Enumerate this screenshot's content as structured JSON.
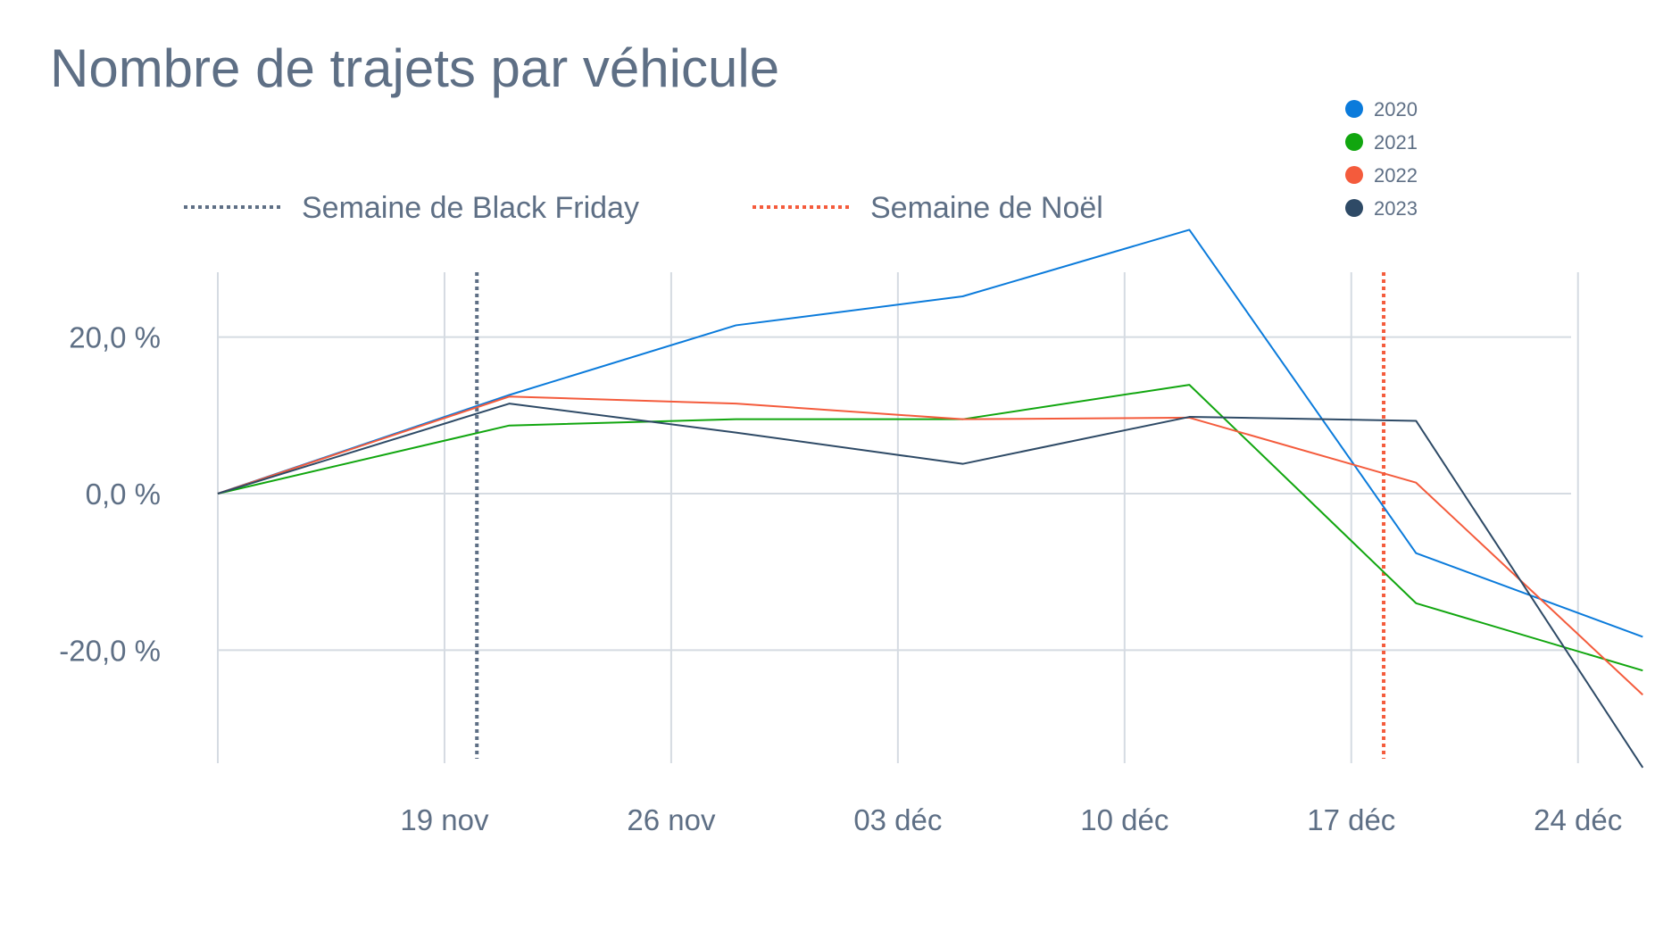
{
  "chart_data": {
    "type": "line",
    "title": "Nombre de trajets par véhicule",
    "xlabel": "",
    "ylabel": "",
    "x": [
      "2023-11-12",
      "2023-11-21",
      "2023-11-28",
      "2023-12-05",
      "2023-12-12",
      "2023-12-19",
      "2023-12-26"
    ],
    "x_ticks": [
      "2023-11-19",
      "2023-11-26",
      "2023-12-03",
      "2023-12-10",
      "2023-12-17",
      "2023-12-24"
    ],
    "x_tick_labels": [
      "19 nov",
      "26 nov",
      "03 déc",
      "10 déc",
      "17 déc",
      "24 déc"
    ],
    "xlim": [
      "2023-11-12",
      "2023-12-25"
    ],
    "y_ticks": [
      20,
      0,
      -20
    ],
    "y_tick_labels": [
      "20,0 %",
      "0,0 %",
      "-20,0 %"
    ],
    "ylim": [
      -35,
      28.5
    ],
    "grid": true,
    "series": [
      {
        "name": "2020",
        "color": "#0b7bdb",
        "values": [
          0,
          12.6,
          21.5,
          25.2,
          33.7,
          -7.6,
          -18.3
        ]
      },
      {
        "name": "2021",
        "color": "#11a60f",
        "values": [
          0,
          8.7,
          9.5,
          9.5,
          13.9,
          -14.0,
          -22.6
        ]
      },
      {
        "name": "2022",
        "color": "#f45b3c",
        "values": [
          0,
          12.4,
          11.5,
          9.5,
          9.7,
          1.4,
          -25.7
        ]
      },
      {
        "name": "2023",
        "color": "#2e4a66",
        "values": [
          0,
          11.5,
          7.8,
          3.8,
          9.8,
          9.3,
          -35.0
        ]
      }
    ],
    "reference_lines": [
      {
        "label": "Semaine de Black Friday",
        "x": "2023-11-20",
        "color": "#5e6f85"
      },
      {
        "label": "Semaine de Noël",
        "x": "2023-12-18",
        "color": "#f45b3c"
      }
    ],
    "legend_placement": "top-right"
  }
}
